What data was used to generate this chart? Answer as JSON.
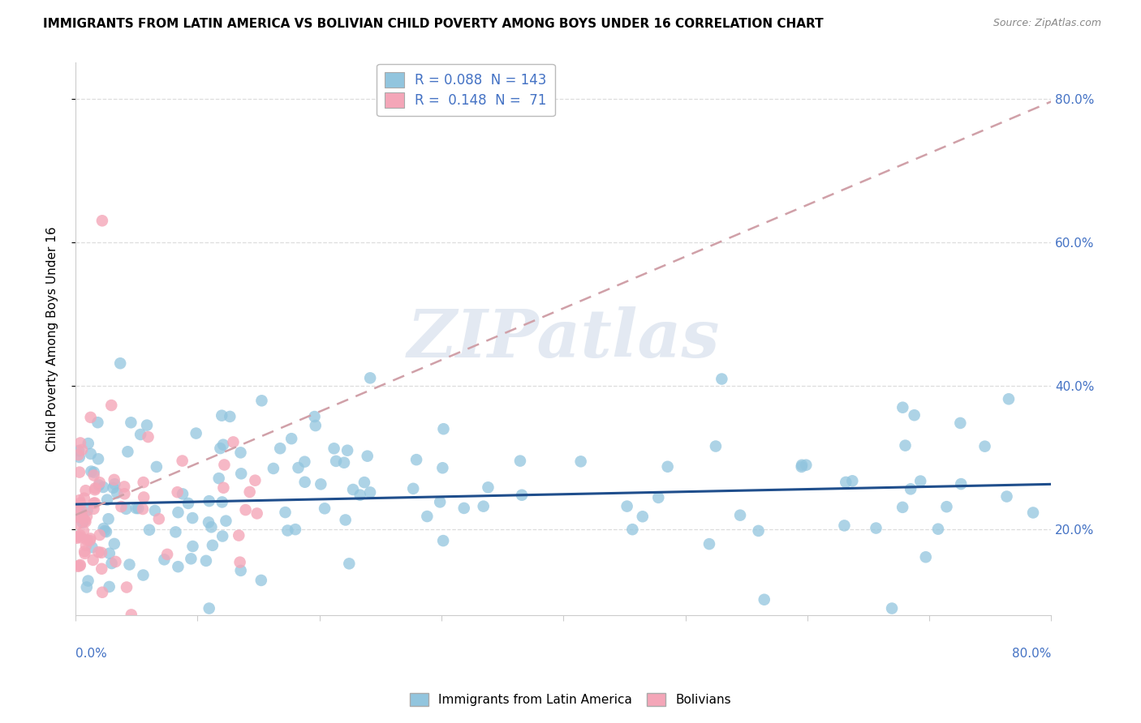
{
  "title": "IMMIGRANTS FROM LATIN AMERICA VS BOLIVIAN CHILD POVERTY AMONG BOYS UNDER 16 CORRELATION CHART",
  "source": "Source: ZipAtlas.com",
  "ylabel": "Child Poverty Among Boys Under 16",
  "legend_label1": "Immigrants from Latin America",
  "legend_label2": "Bolivians",
  "R1": 0.088,
  "N1": 143,
  "R2": 0.148,
  "N2": 71,
  "watermark": "ZIPatlas",
  "blue_color": "#92c5de",
  "pink_color": "#f4a6b8",
  "trend_blue_color": "#1f4e8c",
  "trend_pink_color": "#d0a0a8",
  "xlim": [
    0.0,
    0.8
  ],
  "ylim": [
    0.08,
    0.85
  ],
  "y_ticks": [
    0.2,
    0.4,
    0.6,
    0.8
  ],
  "y_tick_labels": [
    "20.0%",
    "40.0%",
    "60.0%",
    "80.0%"
  ],
  "x_tick_labels_shown": [
    "0.0%",
    "80.0%"
  ],
  "grid_color": "#dddddd",
  "spine_color": "#cccccc",
  "tick_color": "#4472c4",
  "title_fontsize": 11,
  "source_fontsize": 9,
  "legend_fontsize": 12,
  "axis_tick_fontsize": 11
}
